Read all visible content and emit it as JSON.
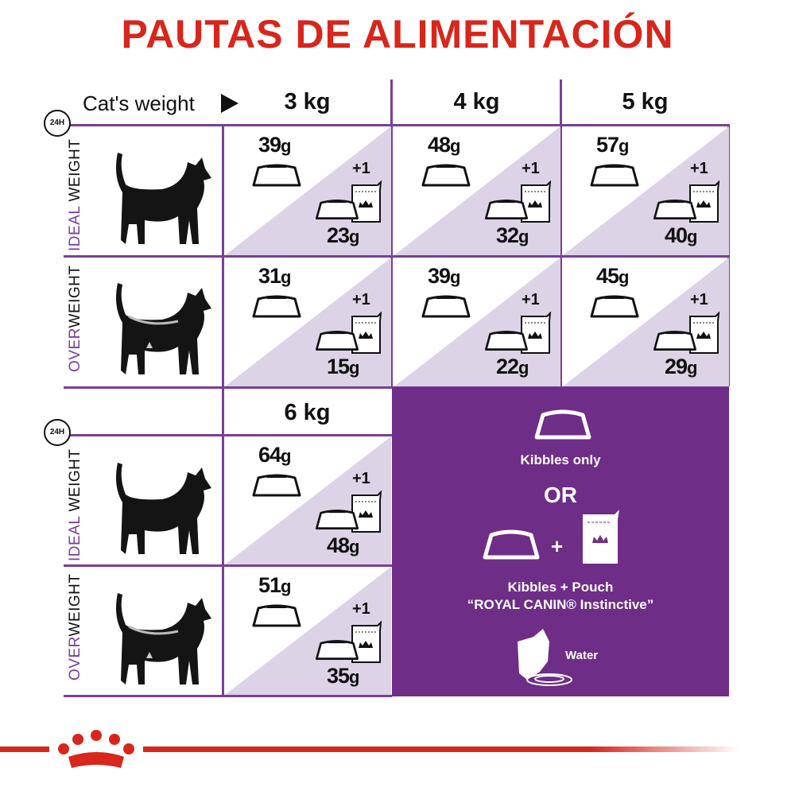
{
  "title": "PAUTAS DE ALIMENTACIÓN",
  "header": {
    "cats_weight_label": "Cat's weight",
    "clock_label": "24H"
  },
  "weights": [
    "3 kg",
    "4 kg",
    "5 kg",
    "6 kg"
  ],
  "row_labels": {
    "ideal": {
      "highlight": "IDEAL",
      "rest": " WEIGHT"
    },
    "over": {
      "highlight": "OVER",
      "rest": "WEIGHT"
    }
  },
  "pouch_count": "+1",
  "table": {
    "ideal": [
      {
        "kibbles_only": "39g",
        "kibbles_with_pouch": "23g"
      },
      {
        "kibbles_only": "48g",
        "kibbles_with_pouch": "32g"
      },
      {
        "kibbles_only": "57g",
        "kibbles_with_pouch": "40g"
      },
      {
        "kibbles_only": "64g",
        "kibbles_with_pouch": "48g"
      }
    ],
    "overweight": [
      {
        "kibbles_only": "31g",
        "kibbles_with_pouch": "15g"
      },
      {
        "kibbles_only": "39g",
        "kibbles_with_pouch": "22g"
      },
      {
        "kibbles_only": "45g",
        "kibbles_with_pouch": "29g"
      },
      {
        "kibbles_only": "51g",
        "kibbles_with_pouch": "35g"
      }
    ]
  },
  "legend": {
    "kibbles_only": "Kibbles only",
    "or": "OR",
    "plus": "+",
    "kibbles_pouch": "Kibbles + Pouch",
    "product": "“ROYAL CANIN® Instinctive”",
    "water": "Water"
  },
  "colors": {
    "brand_red": "#d8261c",
    "purple": "#6e2d87",
    "light_purple": "#ddd3e6"
  }
}
